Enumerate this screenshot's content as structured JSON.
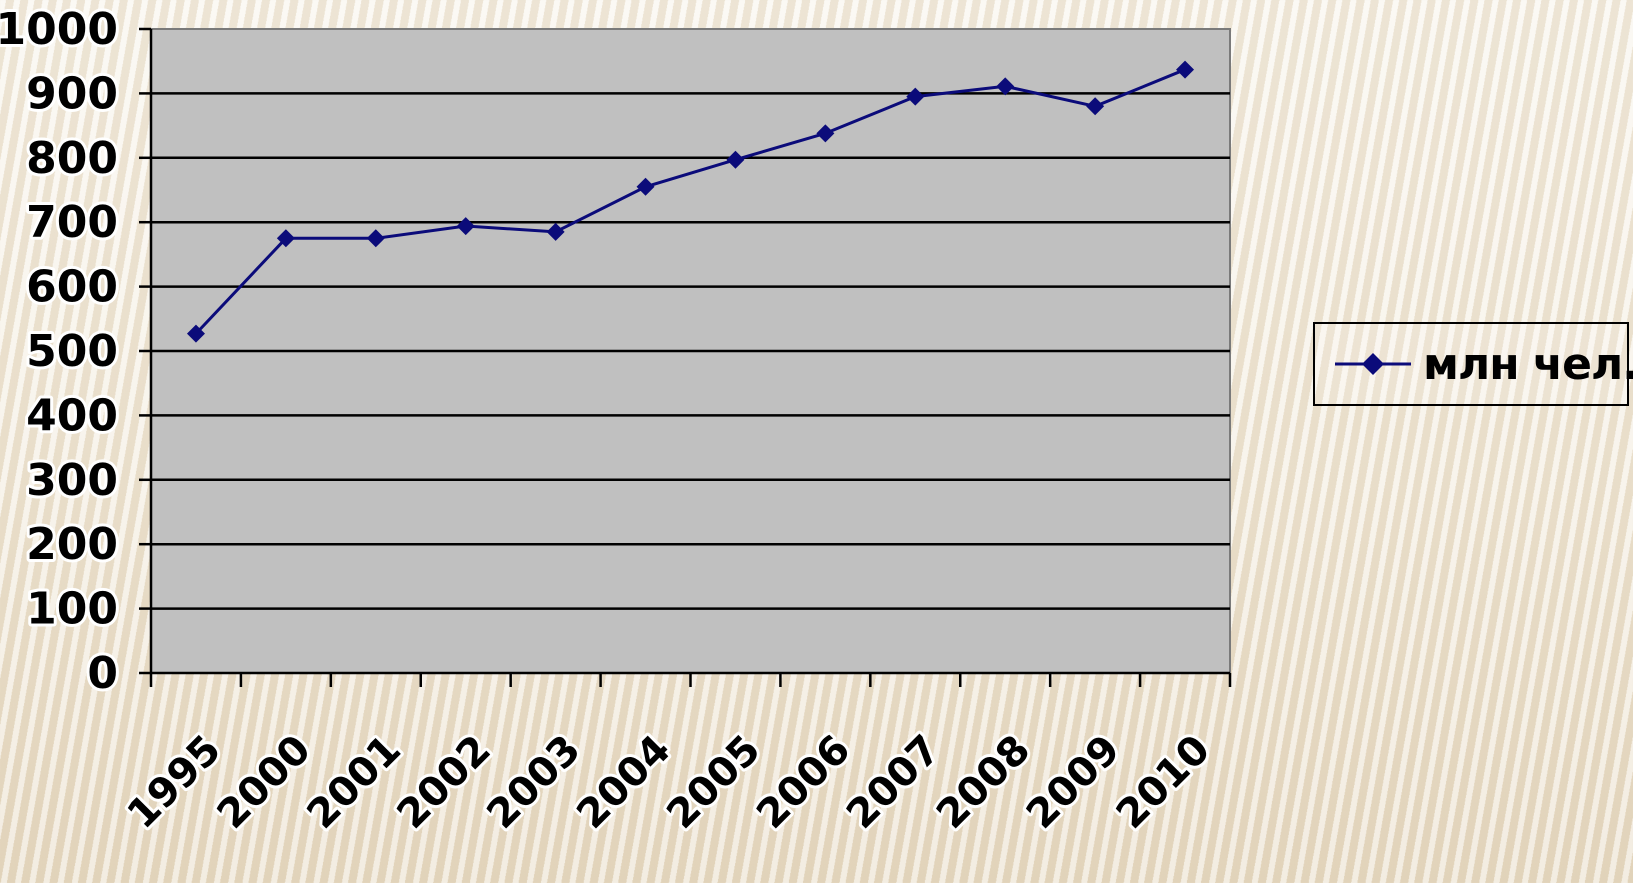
{
  "chart_data": {
    "type": "line",
    "categories": [
      "1995",
      "2000",
      "2001",
      "2002",
      "2003",
      "2004",
      "2005",
      "2006",
      "2007",
      "2008",
      "2009",
      "2010"
    ],
    "series": [
      {
        "name": "млн чел.",
        "values": [
          527,
          675,
          675,
          694,
          685,
          755,
          797,
          838,
          895,
          911,
          880,
          937
        ]
      }
    ],
    "ylim": [
      0,
      1000
    ],
    "yticks": [
      0,
      100,
      200,
      300,
      400,
      500,
      600,
      700,
      800,
      900,
      1000
    ],
    "grid": true,
    "legend": "right",
    "colors": {
      "series": "#0b0b7a",
      "plot_bg": "#c0c0c0",
      "grid": "#000000"
    }
  }
}
